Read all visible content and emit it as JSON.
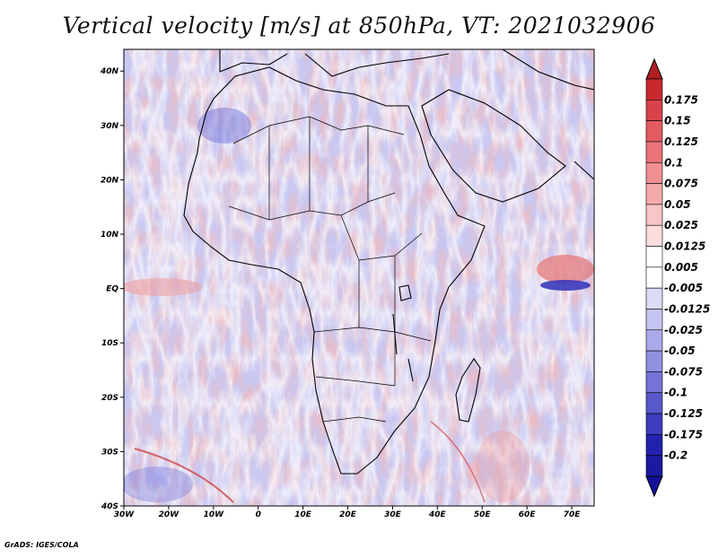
{
  "title": "Vertical velocity [m/s] at 850hPa, VT: 2021032906",
  "credit": "GrADS: IGES/COLA",
  "map": {
    "lon_labels": [
      "30W",
      "20W",
      "10W",
      "0",
      "10E",
      "20E",
      "30E",
      "40E",
      "50E",
      "60E",
      "70E"
    ],
    "lat_labels": [
      "40N",
      "30N",
      "20N",
      "10N",
      "EQ",
      "10S",
      "20S",
      "30S",
      "40S"
    ],
    "lon_range": [
      -30,
      75
    ],
    "lat_range": [
      -40,
      44
    ]
  },
  "colorbar": {
    "labels": [
      "0.175",
      "0.15",
      "0.125",
      "0.1",
      "0.075",
      "0.05",
      "0.025",
      "0.0125",
      "0.005",
      "-0.005",
      "-0.0125",
      "-0.025",
      "-0.05",
      "-0.075",
      "-0.1",
      "-0.125",
      "-0.175",
      "-0.2"
    ],
    "colors": [
      "#c8282d",
      "#d8424a",
      "#e25b60",
      "#ea7478",
      "#f08f92",
      "#f5a9ab",
      "#f9c4c5",
      "#fcdcdc",
      "#ffffff",
      "#ffffff",
      "#dcdcf7",
      "#c4c4f0",
      "#aaaaea",
      "#9090e2",
      "#7474d8",
      "#5858cc",
      "#3c3cbe",
      "#2222b0",
      "#1a1aa0"
    ],
    "top_color": "#b01e22",
    "bottom_color": "#140f9c"
  }
}
